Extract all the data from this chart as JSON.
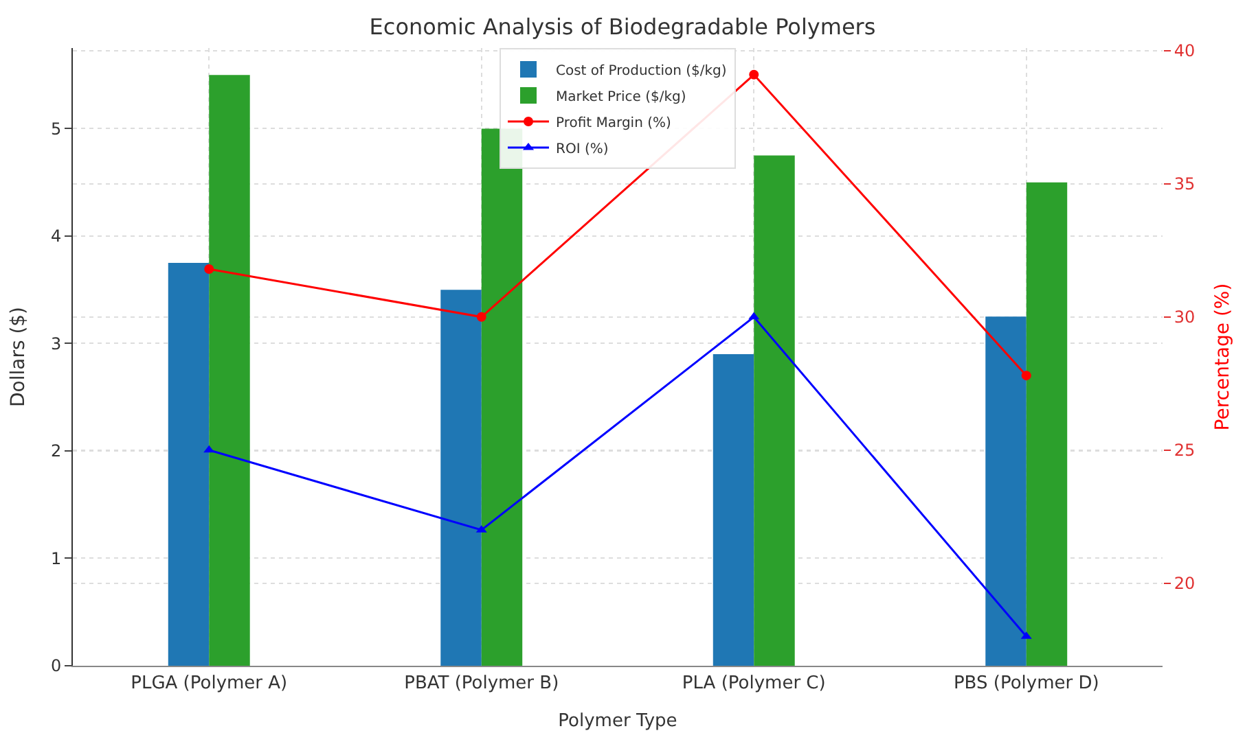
{
  "chart_data": {
    "type": "bar",
    "title": "Economic Analysis of Biodegradable Polymers",
    "xlabel": "Polymer Type",
    "ylabel": "Dollars ($)",
    "y2label": "Percentage (%)",
    "categories": [
      "PLGA (Polymer A)",
      "PBAT (Polymer B)",
      "PLA (Polymer C)",
      "PBS (Polymer D)"
    ],
    "series": [
      {
        "name": "Cost of Production ($/kg)",
        "color": "#1f77b4",
        "values": [
          3.75,
          3.5,
          2.9,
          3.25
        ]
      },
      {
        "name": "Market Price ($/kg)",
        "color": "#2ca02c",
        "values": [
          5.5,
          5.0,
          4.75,
          4.5
        ]
      },
      {
        "name": "Profit Margin (%)",
        "type": "line",
        "axis": "y2",
        "color": "#ff0000",
        "marker": "circle",
        "values": [
          31.8,
          30.0,
          39.1,
          27.8
        ]
      },
      {
        "name": "ROI (%)",
        "type": "line",
        "axis": "y2",
        "color": "#0000ff",
        "marker": "triangle",
        "values": [
          25.0,
          22.0,
          30.0,
          18.0
        ]
      }
    ],
    "ylim": [
      0,
      5.75
    ],
    "yticks": [
      0,
      1,
      2,
      3,
      4,
      5
    ],
    "y2lim": [
      16.9,
      40.1
    ],
    "y2ticks": [
      20,
      25,
      30,
      35,
      40
    ],
    "grid": true,
    "legend": "top"
  }
}
